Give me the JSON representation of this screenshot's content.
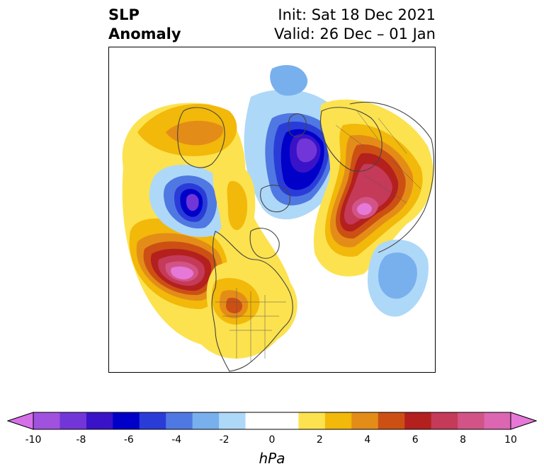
{
  "title": {
    "line1_left": "SLP",
    "line2_left": "Anomaly",
    "line1_right": "Init: Sat 18 Dec 2021",
    "line2_right": "Valid: 26 Dec – 01 Jan"
  },
  "colorbar": {
    "unit": "hPa",
    "tick_labels": [
      "-10",
      "-8",
      "-6",
      "-4",
      "-2",
      "0",
      "2",
      "4",
      "6",
      "8",
      "10"
    ],
    "colors": [
      "#d670e8",
      "#a052de",
      "#7236d8",
      "#3a13c8",
      "#0000c8",
      "#2a3cd8",
      "#5078e2",
      "#78b0ee",
      "#aed8f8",
      "#ffffff",
      "#ffffff",
      "#fce24e",
      "#f2b80a",
      "#e48c18",
      "#cc5014",
      "#b4201e",
      "#c43a58",
      "#d25486",
      "#dc66b2",
      "#e678d8"
    ]
  },
  "map": {
    "projection": "north-polar-stereographic",
    "field": "sea-level-pressure-anomaly",
    "features": [
      {
        "name": "north-pacific-high",
        "sign": "positive",
        "peak_hpa": 10
      },
      {
        "name": "ural-siberia-high",
        "sign": "positive",
        "peak_hpa": 10
      },
      {
        "name": "arctic-low",
        "sign": "negative",
        "peak_hpa": -8
      },
      {
        "name": "greenland-sea-low",
        "sign": "negative",
        "peak_hpa": -8
      },
      {
        "name": "north-atlantic-low",
        "sign": "negative",
        "peak_hpa": -3
      },
      {
        "name": "north-america-high",
        "sign": "positive",
        "peak_hpa": 6
      }
    ]
  }
}
